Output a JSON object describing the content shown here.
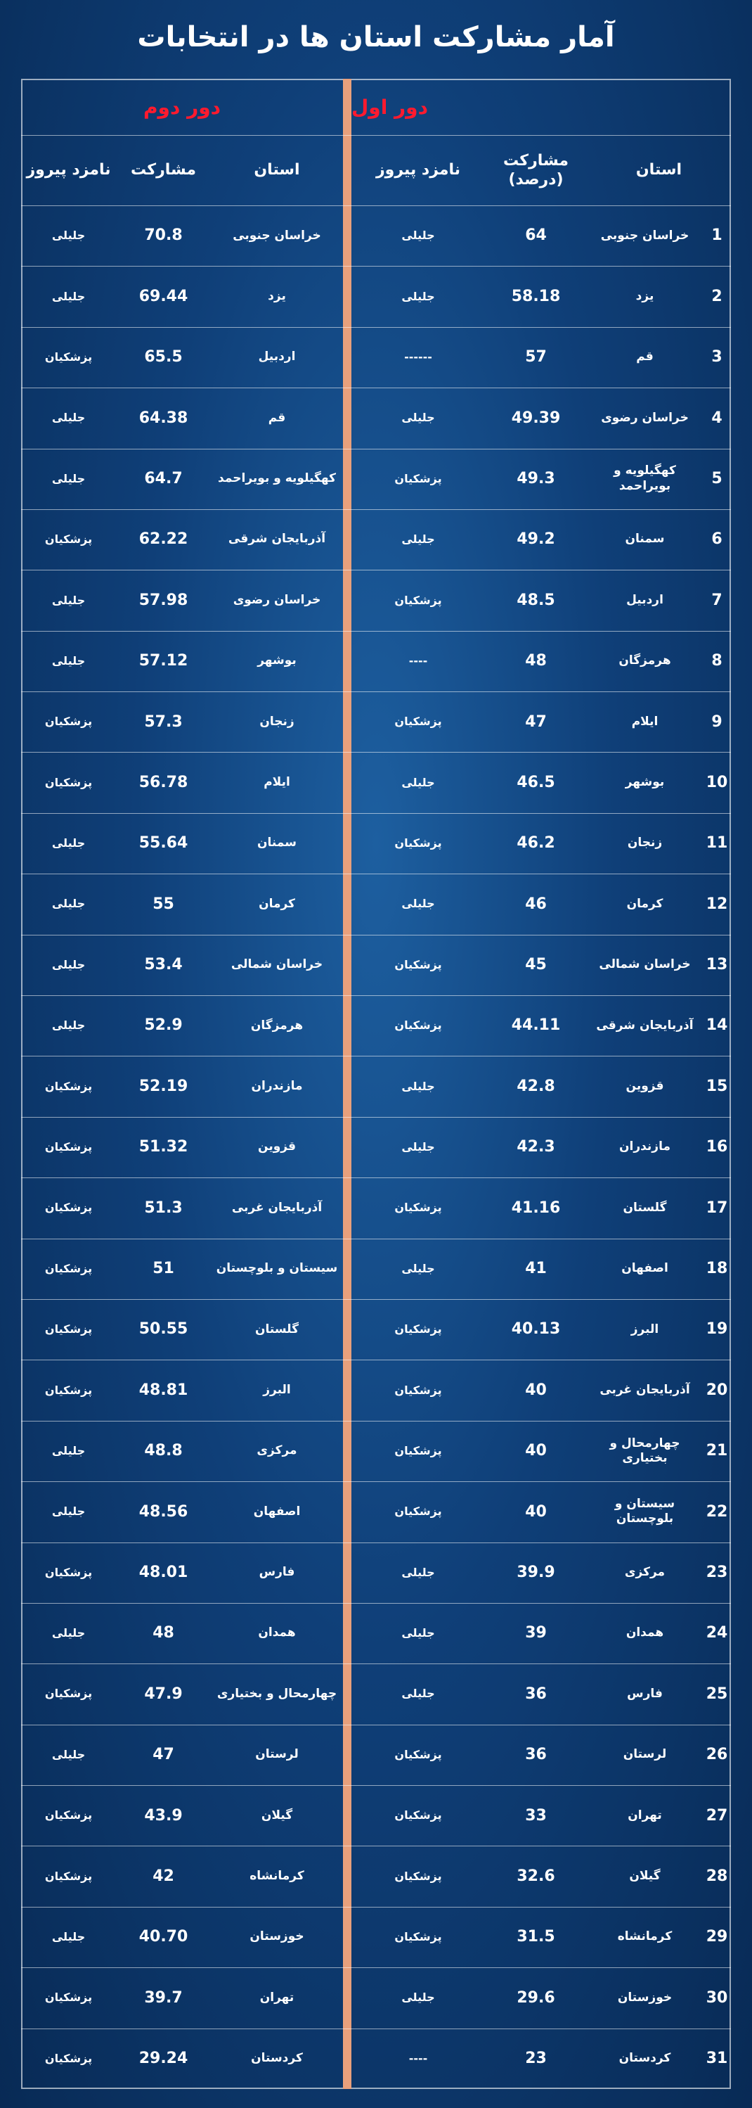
{
  "title": "آمار مشارکت استان ها در انتخابات",
  "round1": {
    "title": "دور اول",
    "headers": [
      "استان",
      "مشارکت (درصد)",
      "نامزد پیروز"
    ],
    "rows": [
      [
        "1",
        "خراسان جنوبی",
        "64",
        "جلیلی"
      ],
      [
        "2",
        "یزد",
        "58.18",
        "جلیلی"
      ],
      [
        "3",
        "قم",
        "57",
        "------"
      ],
      [
        "4",
        "خراسان رضوی",
        "49.39",
        "جلیلی"
      ],
      [
        "5",
        "کهگیلویه و بویراحمد",
        "49.3",
        "پزشکیان"
      ],
      [
        "6",
        "سمنان",
        "49.2",
        "جلیلی"
      ],
      [
        "7",
        "اردبیل",
        "48.5",
        "پزشکیان"
      ],
      [
        "8",
        "هرمزگان",
        "48",
        "----"
      ],
      [
        "9",
        "ایلام",
        "47",
        "پزشکیان"
      ],
      [
        "10",
        "بوشهر",
        "46.5",
        "جلیلی"
      ],
      [
        "11",
        "زنجان",
        "46.2",
        "پزشکیان"
      ],
      [
        "12",
        "کرمان",
        "46",
        "جلیلی"
      ],
      [
        "13",
        "خراسان شمالی",
        "45",
        "پزشکیان"
      ],
      [
        "14",
        "آذربایجان شرقی",
        "44.11",
        "پزشکیان"
      ],
      [
        "15",
        "قزوین",
        "42.8",
        "جلیلی"
      ],
      [
        "16",
        "مازندران",
        "42.3",
        "جلیلی"
      ],
      [
        "17",
        "گلستان",
        "41.16",
        "پزشکیان"
      ],
      [
        "18",
        "اصفهان",
        "41",
        "جلیلی"
      ],
      [
        "19",
        "البرز",
        "40.13",
        "پزشکیان"
      ],
      [
        "20",
        "آذربایجان غربی",
        "40",
        "پزشکیان"
      ],
      [
        "21",
        "چهارمحال و بختیاری",
        "40",
        "پزشکیان"
      ],
      [
        "22",
        "سیستان و بلوچستان",
        "40",
        "پزشکیان"
      ],
      [
        "23",
        "مرکزی",
        "39.9",
        "جلیلی"
      ],
      [
        "24",
        "همدان",
        "39",
        "جلیلی"
      ],
      [
        "25",
        "فارس",
        "36",
        "جلیلی"
      ],
      [
        "26",
        "لرستان",
        "36",
        "پزشکیان"
      ],
      [
        "27",
        "تهران",
        "33",
        "پزشکیان"
      ],
      [
        "28",
        "گیلان",
        "32.6",
        "پزشکیان"
      ],
      [
        "29",
        "کرمانشاه",
        "31.5",
        "پزشکیان"
      ],
      [
        "30",
        "خوزستان",
        "29.6",
        "جلیلی"
      ],
      [
        "31",
        "کردستان",
        "23",
        "----"
      ]
    ]
  },
  "round2": {
    "title": "دور دوم",
    "headers": [
      "استان",
      "مشارکت",
      "نامزد پیروز"
    ],
    "rows": [
      [
        "خراسان جنوبی",
        "70.8",
        "جلیلی"
      ],
      [
        "یزد",
        "69.44",
        "جلیلی"
      ],
      [
        "اردبیل",
        "65.5",
        "پزشکیان"
      ],
      [
        "قم",
        "64.38",
        "جلیلی"
      ],
      [
        "کهگیلویه و بویراحمد",
        "64.7",
        "جلیلی"
      ],
      [
        "آذربایجان شرقی",
        "62.22",
        "پزشکیان"
      ],
      [
        "خراسان رضوی",
        "57.98",
        "جلیلی"
      ],
      [
        "بوشهر",
        "57.12",
        "جلیلی"
      ],
      [
        "زنجان",
        "57.3",
        "پزشکیان"
      ],
      [
        "ایلام",
        "56.78",
        "پزشکیان"
      ],
      [
        "سمنان",
        "55.64",
        "جلیلی"
      ],
      [
        "کرمان",
        "55",
        "جلیلی"
      ],
      [
        "خراسان شمالی",
        "53.4",
        "جلیلی"
      ],
      [
        "هرمزگان",
        "52.9",
        "جلیلی"
      ],
      [
        "مازندران",
        "52.19",
        "پزشکیان"
      ],
      [
        "قزوین",
        "51.32",
        "پزشکیان"
      ],
      [
        "آذربایجان غربی",
        "51.3",
        "پزشکیان"
      ],
      [
        "سیستان و بلوچستان",
        "51",
        "پزشکیان"
      ],
      [
        "گلستان",
        "50.55",
        "پزشکیان"
      ],
      [
        "البرز",
        "48.81",
        "پزشکیان"
      ],
      [
        "مرکزی",
        "48.8",
        "جلیلی"
      ],
      [
        "اصفهان",
        "48.56",
        "جلیلی"
      ],
      [
        "فارس",
        "48.01",
        "پزشکیان"
      ],
      [
        "همدان",
        "48",
        "جلیلی"
      ],
      [
        "چهارمحال و بختیاری",
        "47.9",
        "پزشکیان"
      ],
      [
        "لرستان",
        "47",
        "جلیلی"
      ],
      [
        "گیلان",
        "43.9",
        "پزشکیان"
      ],
      [
        "کرمانشاه",
        "42",
        "پزشکیان"
      ],
      [
        "خوزستان",
        "40.70",
        "جلیلی"
      ],
      [
        "تهران",
        "39.7",
        "پزشکیان"
      ],
      [
        "کردستان",
        "29.24",
        "پزشکیان"
      ]
    ]
  }
}
